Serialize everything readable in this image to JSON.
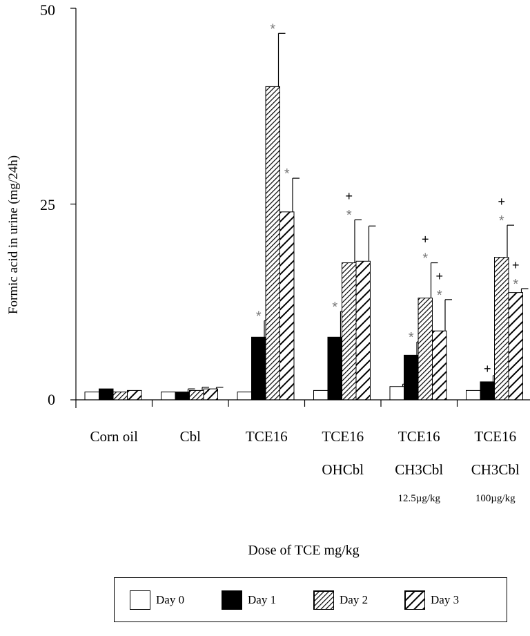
{
  "chart_data": {
    "type": "bar",
    "xlabel": "Dose of TCE mg/kg",
    "ylabel": "Formic acid in urine (mg/24h)",
    "ylim": [
      0,
      50
    ],
    "yticks": [
      "0",
      "25",
      "50"
    ],
    "categories": [
      {
        "label": "Corn oil",
        "line2": "",
        "sub": ""
      },
      {
        "label": "Cbl",
        "line2": "",
        "sub": ""
      },
      {
        "label": "TCE16",
        "line2": "",
        "sub": ""
      },
      {
        "label": "TCE16",
        "line2": "OHCbl",
        "sub": ""
      },
      {
        "label": "TCE16",
        "line2": "CH3Cbl",
        "sub": "12.5µg/kg"
      },
      {
        "label": "TCE16",
        "line2": "CH3Cbl",
        "sub": "100µg/kg"
      }
    ],
    "series": [
      {
        "name": "Day 0",
        "pattern": "white",
        "values": [
          1.0,
          1.0,
          1.0,
          1.2,
          1.7,
          1.2
        ],
        "errors": [
          0,
          0,
          0,
          0,
          0.3,
          0
        ]
      },
      {
        "name": "Day 1",
        "pattern": "black",
        "values": [
          1.4,
          1.0,
          8.0,
          8.0,
          5.7,
          2.3
        ],
        "errors": [
          0,
          0.4,
          2.1,
          3.3,
          1.7,
          0.8
        ]
      },
      {
        "name": "Day 2",
        "pattern": "dense-hatch",
        "values": [
          1.0,
          1.2,
          40.0,
          17.5,
          13.0,
          18.2
        ],
        "errors": [
          0,
          0.4,
          6.8,
          5.5,
          4.5,
          4.1
        ]
      },
      {
        "name": "Day 3",
        "pattern": "wide-hatch",
        "values": [
          1.2,
          1.4,
          24.0,
          17.7,
          8.8,
          13.7
        ],
        "errors": [
          0,
          0.2,
          4.3,
          4.5,
          4.0,
          0.5
        ]
      }
    ],
    "annotations": [
      {
        "category": 2,
        "series": 1,
        "marks": [
          "*"
        ]
      },
      {
        "category": 2,
        "series": 2,
        "marks": [
          "*"
        ]
      },
      {
        "category": 2,
        "series": 3,
        "marks": [
          "*"
        ]
      },
      {
        "category": 3,
        "series": 1,
        "marks": [
          "*"
        ]
      },
      {
        "category": 3,
        "series": 2,
        "marks": [
          "+",
          "*"
        ]
      },
      {
        "category": 4,
        "series": 1,
        "marks": [
          "*"
        ]
      },
      {
        "category": 4,
        "series": 2,
        "marks": [
          "+",
          "*"
        ]
      },
      {
        "category": 4,
        "series": 3,
        "marks": [
          "+",
          "*"
        ]
      },
      {
        "category": 5,
        "series": 1,
        "marks": [
          "+"
        ]
      },
      {
        "category": 5,
        "series": 2,
        "marks": [
          "+",
          "*"
        ]
      },
      {
        "category": 5,
        "series": 3,
        "marks": [
          "+",
          "*"
        ]
      }
    ],
    "legend": {
      "position": "bottom"
    }
  }
}
